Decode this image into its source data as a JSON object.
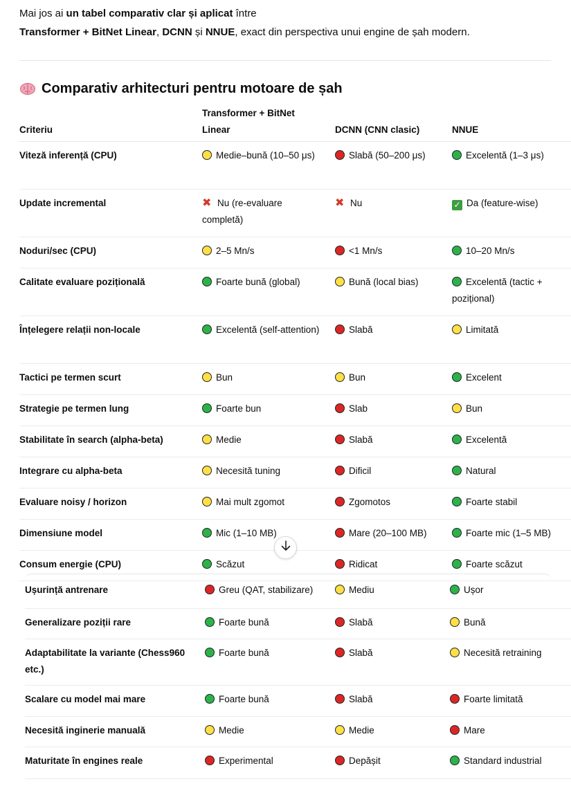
{
  "intro": {
    "line1_a": "Mai jos ai ",
    "line1_b": "un tabel comparativ clar și aplicat",
    "line1_c": " între",
    "line2_a": "Transformer + BitNet Linear",
    "line2_b": ", ",
    "line2_c": "DCNN",
    "line2_d": " și ",
    "line2_e": "NNUE",
    "line2_f": ", exact din perspectiva unui engine de șah modern."
  },
  "heading": {
    "icon": "brain-icon",
    "text": "Comparativ arhitecturi pentru motoare de șah"
  },
  "table": {
    "headers": [
      "Criteriu",
      "Transformer + BitNet Linear",
      "DCNN (CNN clasic)",
      "NNUE"
    ],
    "rows": [
      {
        "criteriu": "Viteză inferență (CPU)",
        "cells": [
          {
            "icon": "yellow",
            "text": "Medie–bună (10–50 μs)"
          },
          {
            "icon": "red",
            "text": "Slabă (50–200 μs)"
          },
          {
            "icon": "green",
            "text": "Excelentă (1–3 μs)"
          }
        ]
      },
      {
        "criteriu": "Update incremental",
        "cells": [
          {
            "icon": "cross",
            "text": "Nu (re-evaluare completă)"
          },
          {
            "icon": "cross",
            "text": "Nu"
          },
          {
            "icon": "check",
            "text": "Da (feature-wise)"
          }
        ]
      },
      {
        "criteriu": "Noduri/sec (CPU)",
        "cells": [
          {
            "icon": "yellow",
            "text": "2–5 Mn/s"
          },
          {
            "icon": "red",
            "text": "<1 Mn/s"
          },
          {
            "icon": "green",
            "text": "10–20 Mn/s"
          }
        ]
      },
      {
        "criteriu": "Calitate evaluare pozițională",
        "cells": [
          {
            "icon": "green",
            "text": "Foarte bună (global)"
          },
          {
            "icon": "yellow",
            "text": "Bună (local bias)"
          },
          {
            "icon": "green",
            "text": "Excelentă (tactic + pozițional)"
          }
        ]
      },
      {
        "criteriu": "Înțelegere relații non-locale",
        "cells": [
          {
            "icon": "green",
            "text": "Excelentă (self-attention)"
          },
          {
            "icon": "red",
            "text": "Slabă"
          },
          {
            "icon": "yellow",
            "text": "Limitată"
          }
        ]
      },
      {
        "criteriu": "Tactici pe termen scurt",
        "cells": [
          {
            "icon": "yellow",
            "text": "Bun"
          },
          {
            "icon": "yellow",
            "text": "Bun"
          },
          {
            "icon": "green",
            "text": "Excelent"
          }
        ]
      },
      {
        "criteriu": "Strategie pe termen lung",
        "cells": [
          {
            "icon": "green",
            "text": "Foarte bun"
          },
          {
            "icon": "red",
            "text": "Slab"
          },
          {
            "icon": "yellow",
            "text": "Bun"
          }
        ]
      },
      {
        "criteriu": "Stabilitate în search (alpha-beta)",
        "cells": [
          {
            "icon": "yellow",
            "text": "Medie"
          },
          {
            "icon": "red",
            "text": "Slabă"
          },
          {
            "icon": "green",
            "text": "Excelentă"
          }
        ]
      },
      {
        "criteriu": "Integrare cu alpha-beta",
        "cells": [
          {
            "icon": "yellow",
            "text": "Necesită tuning"
          },
          {
            "icon": "red",
            "text": "Dificil"
          },
          {
            "icon": "green",
            "text": "Natural"
          }
        ]
      },
      {
        "criteriu": "Evaluare noisy / horizon",
        "cells": [
          {
            "icon": "yellow",
            "text": "Mai mult zgomot"
          },
          {
            "icon": "red",
            "text": "Zgomotos"
          },
          {
            "icon": "green",
            "text": "Foarte stabil"
          }
        ]
      },
      {
        "criteriu": "Dimensiune model",
        "cells": [
          {
            "icon": "green",
            "text": "Mic (1–10 MB)"
          },
          {
            "icon": "red",
            "text": "Mare (20–100 MB)"
          },
          {
            "icon": "green",
            "text": "Foarte mic (1–5 MB)"
          }
        ]
      },
      {
        "criteriu": "Consum energie (CPU)",
        "cells": [
          {
            "icon": "green",
            "text": "Scăzut"
          },
          {
            "icon": "red",
            "text": "Ridicat"
          },
          {
            "icon": "green",
            "text": "Foarte scăzut"
          }
        ]
      }
    ],
    "rows_continued": [
      {
        "criteriu": "Ușurință antrenare",
        "cells": [
          {
            "icon": "red",
            "text": "Greu (QAT, stabilizare)"
          },
          {
            "icon": "yellow",
            "text": "Mediu"
          },
          {
            "icon": "green",
            "text": "Ușor"
          }
        ]
      },
      {
        "criteriu": "Generalizare poziții rare",
        "cells": [
          {
            "icon": "green",
            "text": "Foarte bună"
          },
          {
            "icon": "red",
            "text": "Slabă"
          },
          {
            "icon": "yellow",
            "text": "Bună"
          }
        ]
      },
      {
        "criteriu": "Adaptabilitate la variante (Chess960 etc.)",
        "cells": [
          {
            "icon": "green",
            "text": "Foarte bună"
          },
          {
            "icon": "red",
            "text": "Slabă"
          },
          {
            "icon": "yellow",
            "text": "Necesită retraining"
          }
        ]
      },
      {
        "criteriu": "Scalare cu model mai mare",
        "cells": [
          {
            "icon": "green",
            "text": "Foarte bună"
          },
          {
            "icon": "red",
            "text": "Slabă"
          },
          {
            "icon": "red",
            "text": "Foarte limitată"
          }
        ]
      },
      {
        "criteriu": "Necesită inginerie manuală",
        "cells": [
          {
            "icon": "yellow",
            "text": "Medie"
          },
          {
            "icon": "yellow",
            "text": "Medie"
          },
          {
            "icon": "red",
            "text": "Mare"
          }
        ]
      },
      {
        "criteriu": "Maturitate în engines reale",
        "cells": [
          {
            "icon": "red",
            "text": "Experimental"
          },
          {
            "icon": "red",
            "text": "Depășit"
          },
          {
            "icon": "green",
            "text": "Standard industrial"
          }
        ]
      }
    ]
  },
  "scroll_button": {
    "icon": "arrow-down-icon"
  },
  "colors": {
    "green": "#2bb34a",
    "yellow": "#fde047",
    "red": "#dc2626",
    "cross": "#d43a2a",
    "check": "#3d9d3f"
  }
}
